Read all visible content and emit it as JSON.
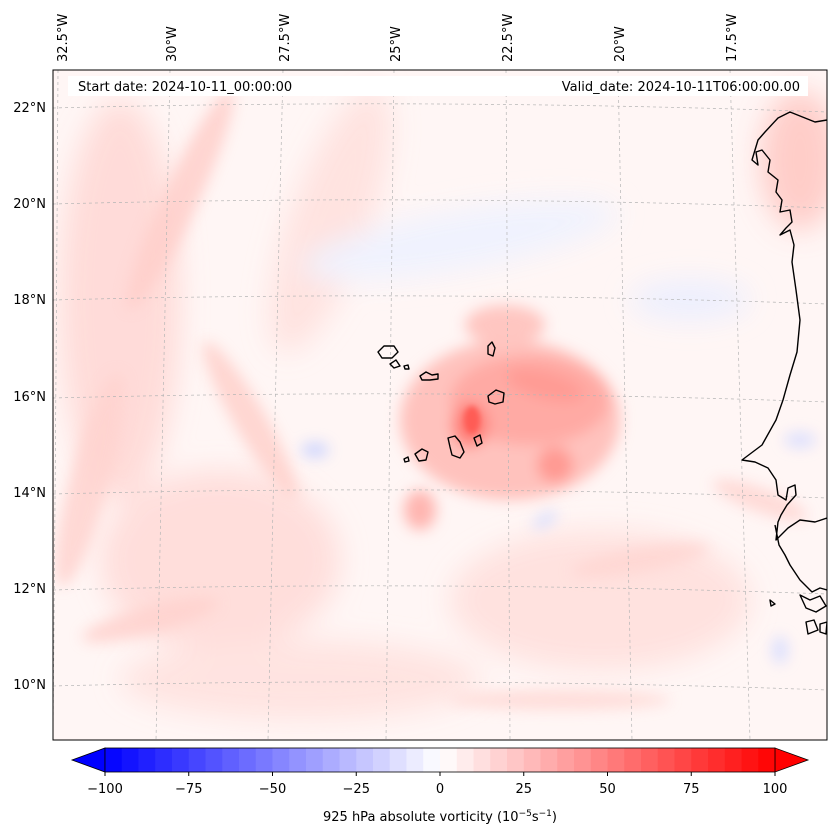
{
  "map": {
    "start_date": "Start date: 2024-10-11_00:00:00",
    "valid_date": "Valid_date: 2024-10-11T06:00:00.00",
    "lon_labels": [
      "32.5°W",
      "30°W",
      "27.5°W",
      "25°W",
      "22.5°W",
      "20°W",
      "17.5°W"
    ],
    "lat_labels": [
      "22°N",
      "20°N",
      "18°N",
      "16°N",
      "14°N",
      "12°N",
      "10°N"
    ],
    "extent": {
      "lon": [
        -32.5,
        -16.3
      ],
      "lat": [
        8.8,
        22.8
      ]
    },
    "gridlines": true
  },
  "colorbar": {
    "label": "925 hPa absolute vorticity (10",
    "label_sup1": "−5",
    "label_mid": "s",
    "label_sup2": "−1",
    "label_end": ")",
    "ticks": [
      "−100",
      "−75",
      "−50",
      "−25",
      "0",
      "25",
      "50",
      "75",
      "100"
    ],
    "range": [
      -100,
      100
    ],
    "cmap": "bwr",
    "extend": "both"
  },
  "colors": {
    "coastline": "#000000",
    "gridline": "#b0b0b0",
    "negative": "#0000ff",
    "positive": "#ff0000",
    "neutral": "#ffffff"
  }
}
